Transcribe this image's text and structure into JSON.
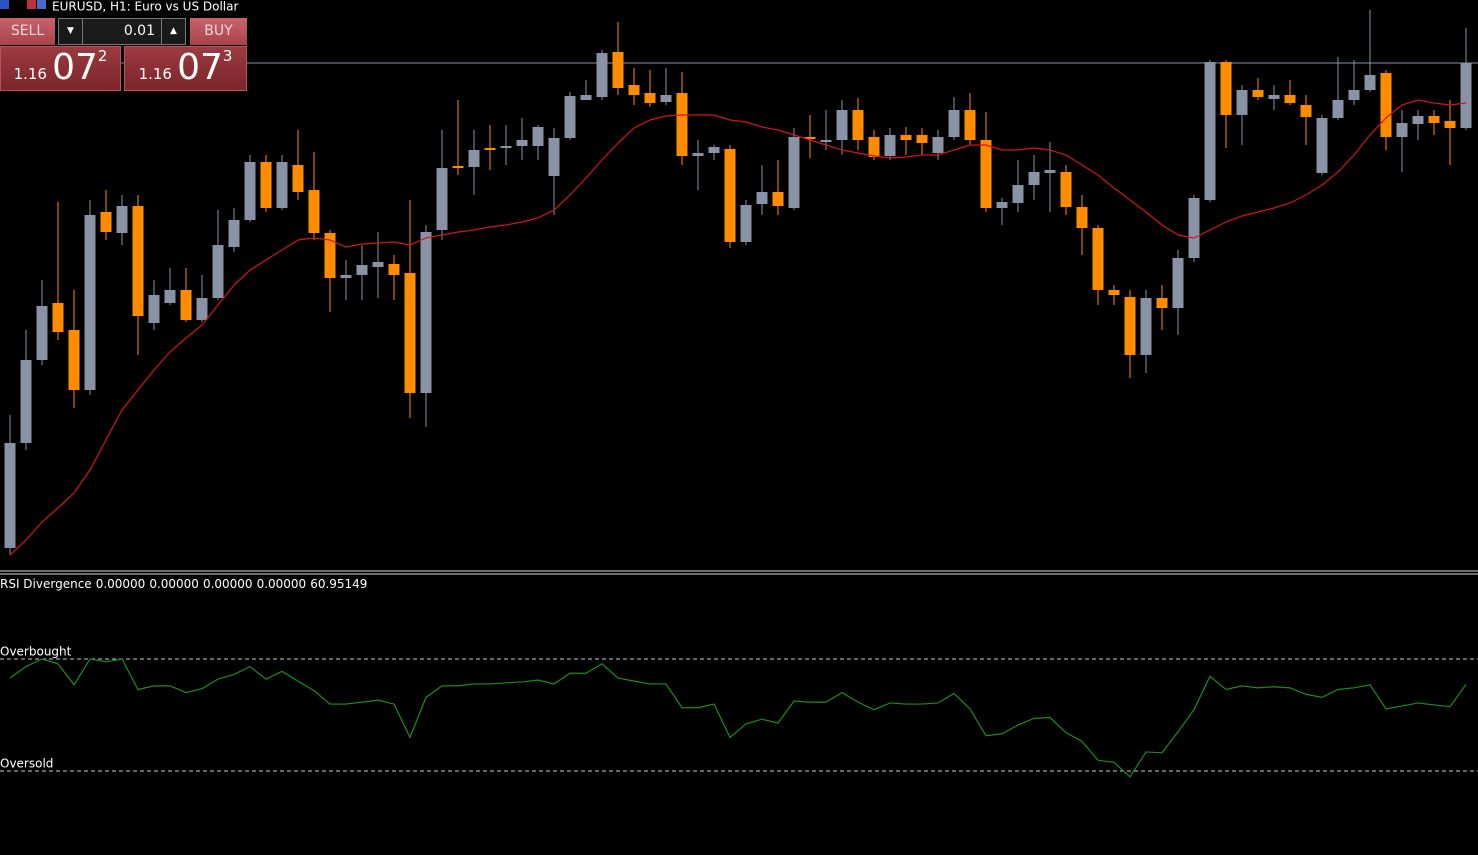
{
  "trade_panel": {
    "sell_label": "SELL",
    "buy_label": "BUY",
    "lot": "0.01",
    "sell_price": {
      "prefix": "1.16",
      "big": "07",
      "small": "2"
    },
    "buy_price": {
      "prefix": "1.16",
      "big": "07",
      "small": "3"
    }
  },
  "chart_data": [
    {
      "type": "candlestick",
      "title": "EURUSD, H1:  Euro vs US Dollar",
      "up_color": "#8a93a5",
      "down_color": "#ff8c00",
      "ylim": [
        1.15565,
        1.16135
      ],
      "price_line": 1.16072,
      "open": [
        1.15587,
        1.15692,
        1.15775,
        1.15832,
        1.15805,
        1.15745,
        1.15923,
        1.15902,
        1.15929,
        1.15812,
        1.15832,
        1.15845,
        1.15815,
        1.15837,
        1.15888,
        1.15915,
        1.15973,
        1.15927,
        1.1597,
        1.15945,
        1.15902,
        1.15857,
        1.1586,
        1.15868,
        1.15871,
        1.15862,
        1.15742,
        1.15905,
        1.15969,
        1.15968,
        1.15987,
        1.15987,
        1.15989,
        1.15989,
        1.15959,
        1.15997,
        1.16035,
        1.16038,
        1.16083,
        1.1605,
        1.16042,
        1.16033,
        1.16042,
        1.15979,
        1.15982,
        1.15986,
        1.15893,
        1.15931,
        1.15943,
        1.15927,
        1.15998,
        1.15993,
        1.15995,
        1.16025,
        1.15998,
        1.15979,
        1.16,
        1.16,
        1.15982,
        1.15998,
        1.16025,
        1.15995,
        1.15927,
        1.15932,
        1.1595,
        1.15962,
        1.15963,
        1.15928,
        1.15907,
        1.15845,
        1.15838,
        1.1578,
        1.15837,
        1.15827,
        1.15877,
        1.15935,
        1.16073,
        1.1602,
        1.16045,
        1.16036,
        1.1604,
        1.1603,
        1.15962,
        1.16017,
        1.16035,
        1.16045,
        1.16062,
        1.15998,
        1.16011,
        1.16019,
        1.16014,
        1.16007
      ],
      "high": [
        1.1572,
        1.15805,
        1.15855,
        1.15933,
        1.15845,
        1.15935,
        1.15945,
        1.1594,
        1.1594,
        1.15855,
        1.15867,
        1.15867,
        1.1586,
        1.15925,
        1.15927,
        1.1598,
        1.1598,
        1.1598,
        1.16005,
        1.15983,
        1.15905,
        1.15875,
        1.1589,
        1.15903,
        1.1588,
        1.15935,
        1.1591,
        1.16005,
        1.16035,
        1.16005,
        1.1601,
        1.1601,
        1.16017,
        1.1601,
        1.16007,
        1.16043,
        1.16055,
        1.16085,
        1.16113,
        1.16067,
        1.16065,
        1.16067,
        1.16063,
        1.15995,
        1.1599,
        1.1599,
        1.15935,
        1.1597,
        1.15975,
        1.16007,
        1.1602,
        1.16025,
        1.16035,
        1.16037,
        1.16005,
        1.16007,
        1.16008,
        1.16007,
        1.16005,
        1.16038,
        1.16042,
        1.16023,
        1.15937,
        1.15975,
        1.1598,
        1.15993,
        1.1597,
        1.1594,
        1.1591,
        1.1585,
        1.15845,
        1.15845,
        1.1585,
        1.15885,
        1.1594,
        1.16075,
        1.16075,
        1.1605,
        1.16057,
        1.1605,
        1.16055,
        1.1604,
        1.1602,
        1.16078,
        1.16075,
        1.16125,
        1.16065,
        1.16025,
        1.16025,
        1.16025,
        1.16035,
        1.16107
      ],
      "low": [
        1.1558,
        1.15685,
        1.1577,
        1.15795,
        1.15727,
        1.1574,
        1.15895,
        1.1589,
        1.1578,
        1.15805,
        1.1583,
        1.15813,
        1.15813,
        1.15835,
        1.15883,
        1.15913,
        1.15923,
        1.15925,
        1.15935,
        1.15895,
        1.15823,
        1.15835,
        1.15835,
        1.15837,
        1.15835,
        1.15717,
        1.15708,
        1.15895,
        1.1596,
        1.1594,
        1.15965,
        1.1597,
        1.15975,
        1.15975,
        1.1592,
        1.15995,
        1.16035,
        1.16035,
        1.1604,
        1.1603,
        1.16028,
        1.1603,
        1.1597,
        1.15945,
        1.15975,
        1.15887,
        1.1589,
        1.1592,
        1.1592,
        1.15925,
        1.15977,
        1.15985,
        1.1598,
        1.15985,
        1.15975,
        1.15975,
        1.1598,
        1.1598,
        1.15975,
        1.15995,
        1.1599,
        1.15923,
        1.1591,
        1.15923,
        1.15935,
        1.15923,
        1.1592,
        1.1588,
        1.1583,
        1.1583,
        1.15757,
        1.15762,
        1.15805,
        1.158,
        1.15873,
        1.15933,
        1.15987,
        1.1599,
        1.16035,
        1.16025,
        1.1603,
        1.1599,
        1.1596,
        1.16015,
        1.1603,
        1.16043,
        1.15985,
        1.15963,
        1.15995,
        1.16,
        1.1597,
        1.16005
      ],
      "close": [
        1.15692,
        1.15775,
        1.15829,
        1.15803,
        1.15745,
        1.1592,
        1.15903,
        1.15929,
        1.15819,
        1.1584,
        1.15845,
        1.15815,
        1.15837,
        1.1589,
        1.15915,
        1.15973,
        1.15927,
        1.15973,
        1.15943,
        1.15902,
        1.15857,
        1.1586,
        1.1587,
        1.15873,
        1.1586,
        1.15742,
        1.15903,
        1.15967,
        1.15967,
        1.15985,
        1.15985,
        1.15989,
        1.15995,
        1.16008,
        1.15997,
        1.16039,
        1.1604,
        1.16082,
        1.16047,
        1.1604,
        1.16032,
        1.1604,
        1.15979,
        1.15982,
        1.15988,
        1.15893,
        1.1593,
        1.15943,
        1.15929,
        1.15998,
        1.15996,
        1.15995,
        1.16025,
        1.15995,
        1.15978,
        1.16,
        1.15995,
        1.15992,
        1.15998,
        1.16025,
        1.15995,
        1.15927,
        1.15933,
        1.1595,
        1.15963,
        1.15965,
        1.15928,
        1.15907,
        1.15845,
        1.1584,
        1.1578,
        1.15837,
        1.15827,
        1.15877,
        1.15937,
        1.16073,
        1.1602,
        1.16045,
        1.16038,
        1.1604,
        1.16032,
        1.16018,
        1.16017,
        1.16035,
        1.16045,
        1.1606,
        1.15998,
        1.16012,
        1.16019,
        1.16012,
        1.16007,
        1.16072
      ],
      "moving_average": {
        "color": "#d4141c",
        "values": [
          1.1558,
          1.15595,
          1.15613,
          1.15627,
          1.15642,
          1.15665,
          1.15695,
          1.15725,
          1.15745,
          1.15765,
          1.15783,
          1.15797,
          1.1581,
          1.1583,
          1.1585,
          1.15865,
          1.15875,
          1.15885,
          1.15895,
          1.15897,
          1.15895,
          1.15888,
          1.15891,
          1.15892,
          1.15893,
          1.1589,
          1.15897,
          1.159,
          1.15903,
          1.15905,
          1.15908,
          1.1591,
          1.15913,
          1.15917,
          1.15925,
          1.1594,
          1.15957,
          1.15975,
          1.15992,
          1.16007,
          1.16015,
          1.16019,
          1.1602,
          1.1602,
          1.1602,
          1.16015,
          1.16013,
          1.16008,
          1.16005,
          1.16,
          1.15995,
          1.1599,
          1.15985,
          1.15982,
          1.15979,
          1.15977,
          1.15978,
          1.1598,
          1.1598,
          1.15985,
          1.1599,
          1.1599,
          1.15985,
          1.15985,
          1.15987,
          1.15985,
          1.1598,
          1.1597,
          1.1596,
          1.15947,
          1.15935,
          1.15923,
          1.1591,
          1.159,
          1.15897,
          1.15905,
          1.15913,
          1.15919,
          1.15923,
          1.15927,
          1.15932,
          1.1594,
          1.1595,
          1.15963,
          1.1598,
          1.16,
          1.16017,
          1.1603,
          1.16035,
          1.16032,
          1.1603,
          1.16032
        ]
      }
    },
    {
      "type": "line",
      "title": "RSI Divergence",
      "buffer_labels": [
        "0.00000",
        "0.00000",
        "0.00000",
        "0.00000"
      ],
      "color": "#1e8c1e",
      "ylim": [
        0,
        100
      ],
      "levels": [
        {
          "value": 70,
          "label": "Overbought"
        },
        {
          "value": 30,
          "label": "Oversold"
        }
      ],
      "values": [
        63.2,
        67.3,
        70,
        68.3,
        60.8,
        70,
        69.0,
        70,
        59.1,
        60.4,
        60.4,
        58.0,
        59.4,
        62.8,
        64.5,
        67.3,
        62.8,
        65.6,
        62.1,
        58.7,
        53.9,
        53.9,
        54.6,
        55.3,
        53.9,
        42.0,
        56.3,
        60.4,
        60.4,
        61.1,
        61.1,
        61.5,
        61.8,
        62.5,
        61.1,
        64.9,
        64.9,
        68.3,
        63.2,
        62.1,
        61.1,
        61.1,
        52.6,
        52.6,
        53.9,
        42.0,
        46.8,
        48.5,
        47.1,
        55.0,
        54.6,
        54.6,
        58.0,
        54.6,
        51.9,
        54.3,
        53.9,
        53.9,
        54.3,
        57.7,
        52.2,
        42.6,
        43.3,
        46.4,
        48.8,
        49.1,
        43.7,
        40.6,
        33.8,
        33.1,
        27.9,
        36.8,
        36.5,
        44.0,
        51.9,
        63.8,
        59.1,
        60.4,
        59.7,
        60.1,
        59.7,
        57.4,
        56.3,
        59.1,
        59.7,
        60.8,
        52.2,
        53.2,
        54.3,
        53.6,
        52.9,
        60.95149
      ]
    }
  ]
}
